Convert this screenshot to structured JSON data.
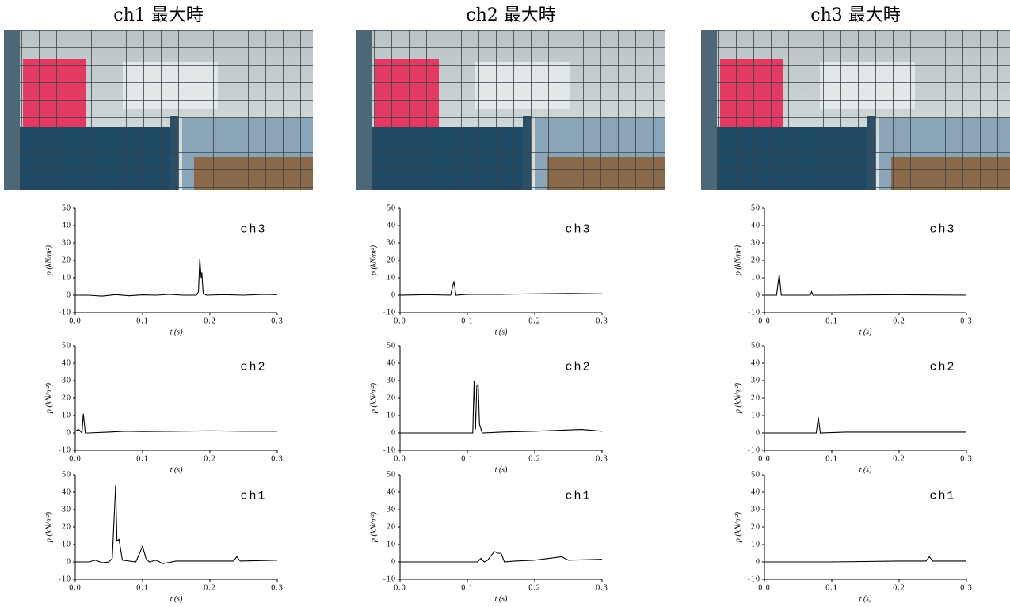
{
  "panel_titles": [
    "ch1 最大時",
    "ch2 最大時",
    "ch3 最大時"
  ],
  "chart_data": [
    {
      "type": "line",
      "label": "ch3",
      "xlabel": "t (s)",
      "ylabel": "p (kN/m²)",
      "xlim": [
        0,
        0.3
      ],
      "ylim": [
        -10,
        50
      ],
      "xticks": [
        {
          "value": 0,
          "label": "0.0"
        },
        0.1,
        0.2,
        0.3
      ],
      "yticks": [
        -10,
        0,
        10,
        20,
        30,
        40,
        50
      ],
      "x": [
        0,
        0.02,
        0.04,
        0.06,
        0.08,
        0.1,
        0.12,
        0.14,
        0.16,
        0.18,
        0.183,
        0.185,
        0.187,
        0.188,
        0.19,
        0.195,
        0.22,
        0.25,
        0.28,
        0.3
      ],
      "series": [
        {
          "color": "#000000",
          "values": [
            0,
            0,
            -0.5,
            0.3,
            -0.3,
            0.2,
            0,
            0.5,
            0,
            0,
            2,
            21,
            10,
            13,
            1,
            0,
            0.3,
            0,
            0.5,
            0.3
          ]
        }
      ]
    },
    {
      "type": "line",
      "label": "ch2",
      "xlabel": "t (s)",
      "ylabel": "p (kN/m²)",
      "xlim": [
        0,
        0.3
      ],
      "ylim": [
        -10,
        50
      ],
      "xticks": [
        {
          "value": 0,
          "label": "0.0"
        },
        0.1,
        0.2,
        0.3
      ],
      "yticks": [
        -10,
        0,
        10,
        20,
        30,
        40,
        50
      ],
      "x": [
        0,
        0.005,
        0.01,
        0.012,
        0.015,
        0.02,
        0.05,
        0.075,
        0.1,
        0.15,
        0.2,
        0.25,
        0.3
      ],
      "series": [
        {
          "color": "#000000",
          "values": [
            1,
            2,
            0,
            11,
            0,
            0,
            0.5,
            1,
            0.8,
            1,
            1.2,
            1,
            1
          ]
        }
      ]
    },
    {
      "type": "line",
      "label": "ch1",
      "xlabel": "t (s)",
      "ylabel": "p (kN/m²)",
      "xlim": [
        0,
        0.3
      ],
      "ylim": [
        -10,
        50
      ],
      "xticks": [
        {
          "value": 0,
          "label": "0.0"
        },
        0.1,
        0.2,
        0.3
      ],
      "yticks": [
        -10,
        0,
        10,
        20,
        30,
        40,
        50
      ],
      "x": [
        0,
        0.02,
        0.03,
        0.04,
        0.05,
        0.055,
        0.06,
        0.062,
        0.065,
        0.07,
        0.09,
        0.1,
        0.105,
        0.11,
        0.12,
        0.13,
        0.15,
        0.2,
        0.235,
        0.24,
        0.245,
        0.3
      ],
      "series": [
        {
          "color": "#000000",
          "values": [
            0,
            0,
            1,
            -0.5,
            0,
            2,
            44,
            12,
            13,
            1,
            0,
            9,
            2,
            0,
            1,
            -1,
            0.5,
            0.5,
            0.5,
            3,
            0.5,
            1
          ]
        }
      ]
    },
    {
      "type": "line",
      "label": "ch3",
      "xlabel": "t (s)",
      "ylabel": "p (kN/m²)",
      "xlim": [
        0,
        0.3
      ],
      "ylim": [
        -10,
        50
      ],
      "xticks": [
        {
          "value": 0,
          "label": "0.0"
        },
        0.1,
        0.2,
        0.3
      ],
      "yticks": [
        -10,
        0,
        10,
        20,
        30,
        40,
        50
      ],
      "x": [
        0,
        0.04,
        0.075,
        0.08,
        0.083,
        0.1,
        0.15,
        0.2,
        0.25,
        0.3
      ],
      "series": [
        {
          "color": "#000000",
          "values": [
            0,
            0.3,
            0,
            8,
            0,
            0.5,
            0.5,
            0.8,
            1,
            0.8
          ]
        }
      ]
    },
    {
      "type": "line",
      "label": "ch2",
      "xlabel": "t (s)",
      "ylabel": "p (kN/m²)",
      "xlim": [
        0,
        0.3
      ],
      "ylim": [
        -10,
        50
      ],
      "xticks": [
        {
          "value": 0,
          "label": "0.0"
        },
        0.1,
        0.2,
        0.3
      ],
      "yticks": [
        -10,
        0,
        10,
        20,
        30,
        40,
        50
      ],
      "x": [
        0,
        0.05,
        0.1,
        0.108,
        0.11,
        0.112,
        0.114,
        0.116,
        0.118,
        0.122,
        0.15,
        0.2,
        0.27,
        0.3
      ],
      "series": [
        {
          "color": "#000000",
          "values": [
            0,
            0,
            0,
            0,
            30,
            2,
            27,
            28,
            5,
            0,
            0.5,
            1,
            2,
            1
          ]
        }
      ]
    },
    {
      "type": "line",
      "label": "ch1",
      "xlabel": "t (s)",
      "ylabel": "p (kN/m²)",
      "xlim": [
        0,
        0.3
      ],
      "ylim": [
        -10,
        50
      ],
      "xticks": [
        {
          "value": 0,
          "label": "0.0"
        },
        0.1,
        0.2,
        0.3
      ],
      "yticks": [
        -10,
        0,
        10,
        20,
        30,
        40,
        50
      ],
      "x": [
        0,
        0.05,
        0.1,
        0.115,
        0.12,
        0.125,
        0.13,
        0.14,
        0.145,
        0.15,
        0.155,
        0.17,
        0.2,
        0.24,
        0.25,
        0.3
      ],
      "series": [
        {
          "color": "#000000",
          "values": [
            0,
            0,
            0,
            0,
            2,
            0,
            1,
            6,
            5,
            5,
            0,
            0.5,
            1,
            3,
            1,
            1.5
          ]
        }
      ]
    },
    {
      "type": "line",
      "label": "ch3",
      "xlabel": "t (s)",
      "ylabel": "p (kN/m²)",
      "xlim": [
        0,
        0.3
      ],
      "ylim": [
        -10,
        50
      ],
      "xticks": [
        {
          "value": 0,
          "label": "0.0"
        },
        0.1,
        0.2,
        0.3
      ],
      "yticks": [
        -10,
        0,
        10,
        20,
        30,
        40,
        50
      ],
      "x": [
        0,
        0.018,
        0.022,
        0.025,
        0.05,
        0.068,
        0.07,
        0.072,
        0.1,
        0.2,
        0.3
      ],
      "series": [
        {
          "color": "#000000",
          "values": [
            0,
            0,
            12,
            0,
            0,
            0,
            2,
            0,
            0,
            0.3,
            0
          ]
        }
      ]
    },
    {
      "type": "line",
      "label": "ch2",
      "xlabel": "t (s)",
      "ylabel": "p (kN/m²)",
      "xlim": [
        0,
        0.3
      ],
      "ylim": [
        -10,
        50
      ],
      "xticks": [
        {
          "value": 0,
          "label": "0.0"
        },
        0.1,
        0.2,
        0.3
      ],
      "yticks": [
        -10,
        0,
        10,
        20,
        30,
        40,
        50
      ],
      "x": [
        0,
        0.05,
        0.077,
        0.08,
        0.083,
        0.12,
        0.2,
        0.3
      ],
      "series": [
        {
          "color": "#000000",
          "values": [
            0,
            0,
            0,
            9,
            0,
            0.5,
            0.5,
            0.5
          ]
        }
      ]
    },
    {
      "type": "line",
      "label": "ch1",
      "xlabel": "t (s)",
      "ylabel": "p (kN/m²)",
      "xlim": [
        0,
        0.3
      ],
      "ylim": [
        -10,
        50
      ],
      "xticks": [
        {
          "value": 0,
          "label": "0.0"
        },
        0.1,
        0.2,
        0.3
      ],
      "yticks": [
        -10,
        0,
        10,
        20,
        30,
        40,
        50
      ],
      "x": [
        0,
        0.1,
        0.2,
        0.24,
        0.245,
        0.25,
        0.3
      ],
      "series": [
        {
          "color": "#000000",
          "values": [
            0,
            0,
            0.5,
            0.5,
            3,
            0.5,
            0.5
          ]
        }
      ]
    }
  ]
}
